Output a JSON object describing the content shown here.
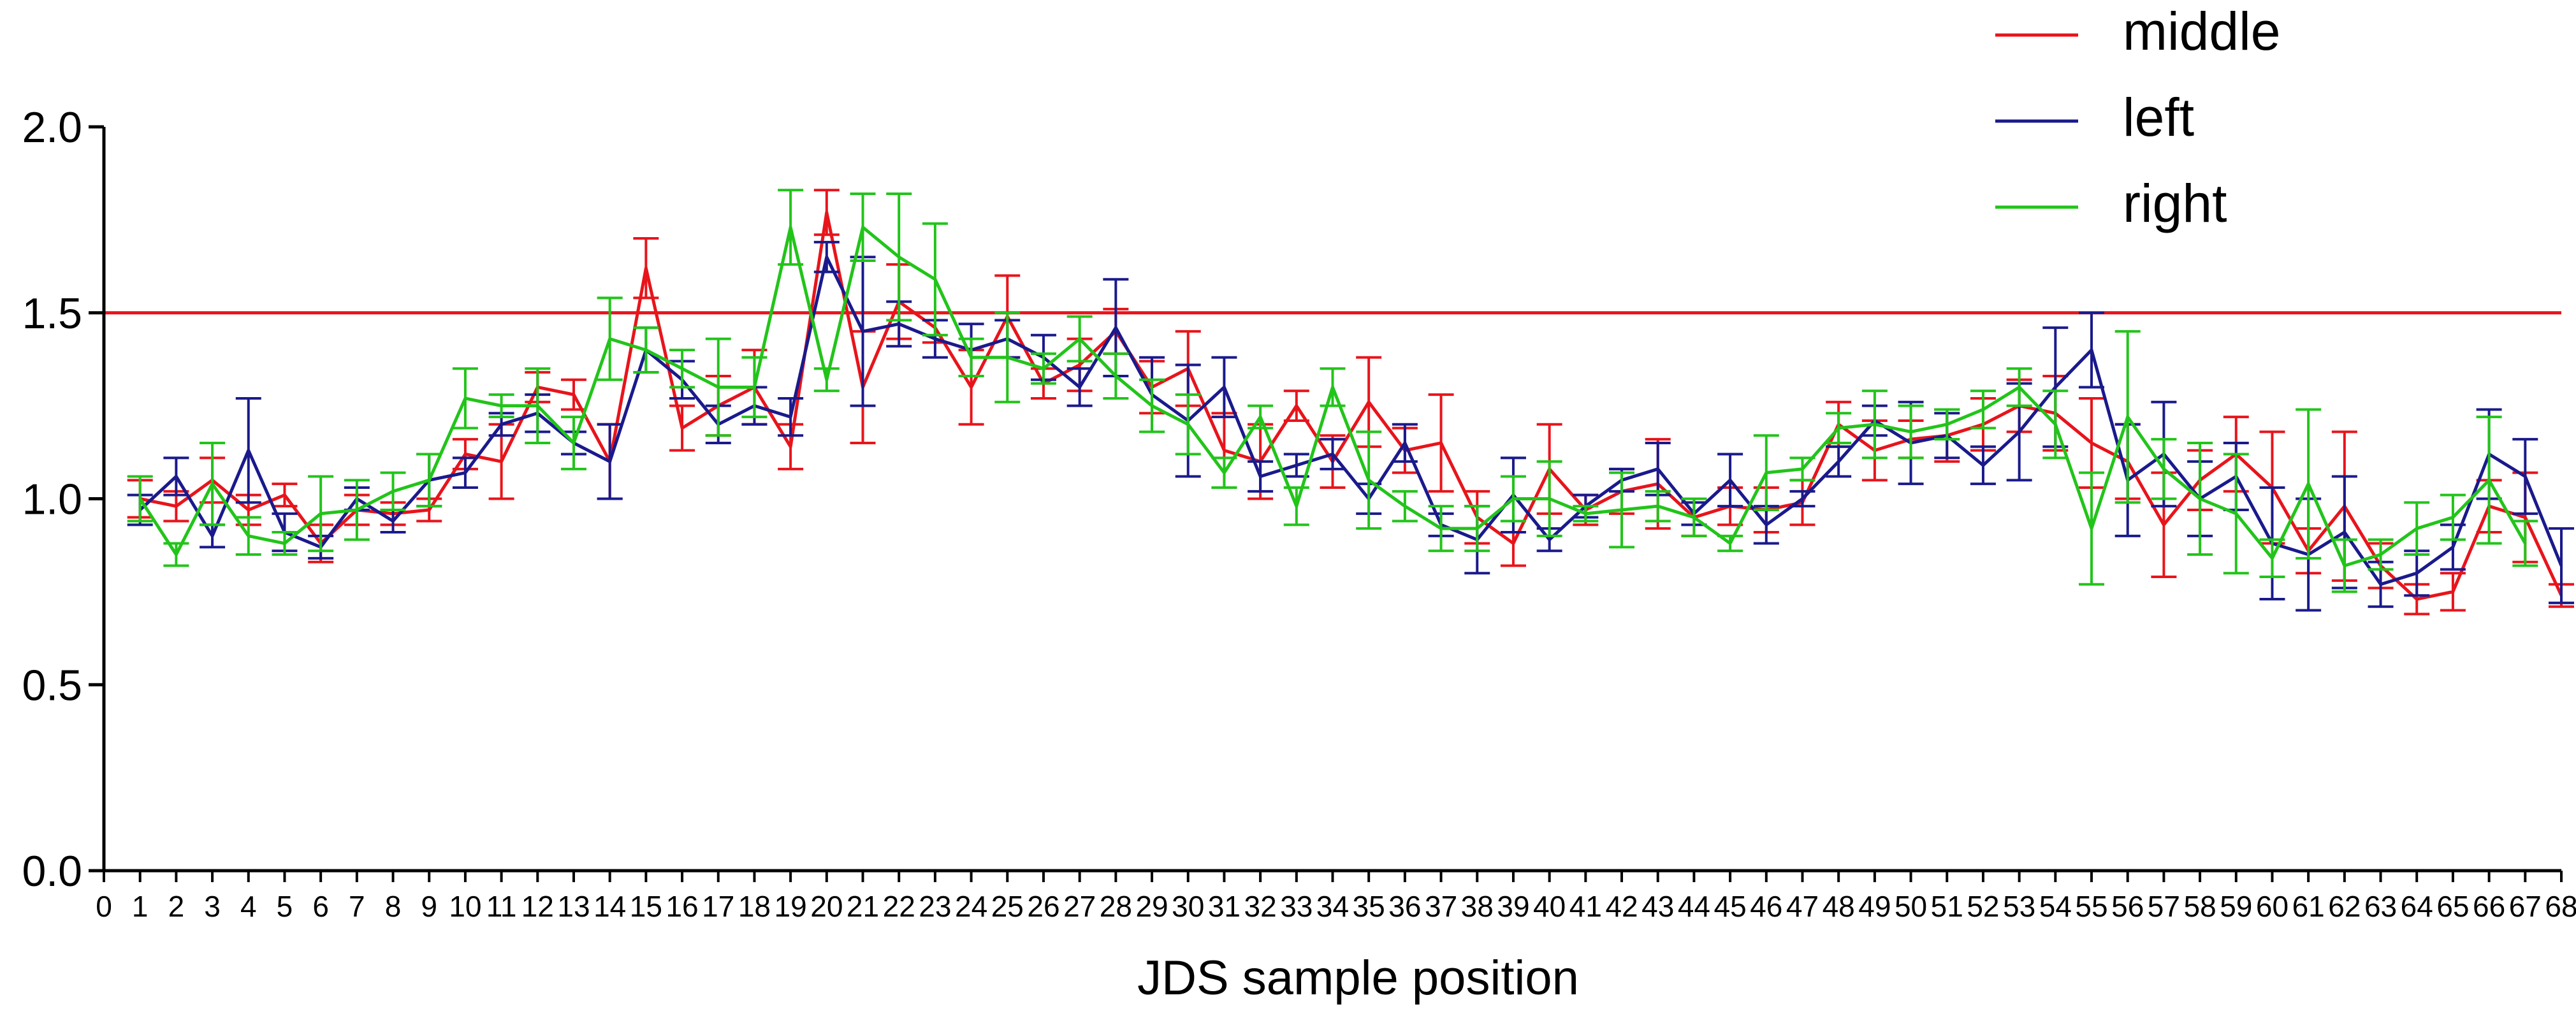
{
  "chart_data": {
    "type": "line",
    "title": "",
    "xlabel": "JDS sample position",
    "ylabel": "",
    "xlim": [
      0,
      68
    ],
    "ylim": [
      0,
      2
    ],
    "yticks": [
      0.0,
      0.5,
      1.0,
      1.5,
      2.0
    ],
    "ytick_labels": [
      "0.0",
      "0.5",
      "1.0",
      "1.5",
      "2.0"
    ],
    "reference_line": {
      "y": 1.5,
      "color": "#e8141b"
    },
    "legend_position": "top-right",
    "series": [
      {
        "name": "middle",
        "color": "#e8141b",
        "values": [
          1.0,
          0.98,
          1.05,
          0.97,
          1.01,
          0.88,
          0.97,
          0.96,
          0.97,
          1.12,
          1.1,
          1.3,
          1.28,
          1.1,
          1.62,
          1.19,
          1.25,
          1.3,
          1.14,
          1.77,
          1.3,
          1.53,
          1.46,
          1.3,
          1.49,
          1.31,
          1.36,
          1.45,
          1.3,
          1.35,
          1.13,
          1.1,
          1.25,
          1.1,
          1.26,
          1.13,
          1.15,
          0.95,
          0.88,
          1.08,
          0.97,
          1.02,
          1.04,
          0.95,
          0.98,
          0.97,
          0.99,
          1.2,
          1.13,
          1.16,
          1.17,
          1.2,
          1.25,
          1.23,
          1.15,
          1.1,
          0.93,
          1.05,
          1.12,
          1.03,
          0.86,
          0.98,
          0.82,
          0.73,
          0.75,
          0.98,
          0.95,
          0.74
        ],
        "errors": [
          0.05,
          0.04,
          0.06,
          0.04,
          0.03,
          0.05,
          0.04,
          0.03,
          0.03,
          0.04,
          0.1,
          0.04,
          0.04,
          0.1,
          0.08,
          0.06,
          0.08,
          0.1,
          0.06,
          0.06,
          0.15,
          0.1,
          0.04,
          0.1,
          0.11,
          0.04,
          0.07,
          0.06,
          0.07,
          0.1,
          0.1,
          0.1,
          0.04,
          0.07,
          0.12,
          0.06,
          0.13,
          0.07,
          0.06,
          0.12,
          0.04,
          0.06,
          0.12,
          0.05,
          0.05,
          0.06,
          0.06,
          0.06,
          0.08,
          0.05,
          0.07,
          0.07,
          0.07,
          0.1,
          0.12,
          0.1,
          0.14,
          0.08,
          0.1,
          0.15,
          0.06,
          0.2,
          0.06,
          0.04,
          0.05,
          0.07,
          0.12,
          0.03
        ]
      },
      {
        "name": "left",
        "color": "#1a1a8c",
        "values": [
          0.97,
          1.06,
          0.9,
          1.13,
          0.91,
          0.87,
          1.0,
          0.94,
          1.05,
          1.07,
          1.2,
          1.23,
          1.15,
          1.1,
          1.4,
          1.32,
          1.2,
          1.25,
          1.22,
          1.65,
          1.45,
          1.47,
          1.43,
          1.4,
          1.43,
          1.38,
          1.3,
          1.46,
          1.28,
          1.21,
          1.3,
          1.06,
          1.09,
          1.12,
          1.0,
          1.15,
          0.93,
          0.89,
          1.01,
          0.89,
          0.98,
          1.05,
          1.08,
          0.96,
          1.05,
          0.93,
          1.0,
          1.1,
          1.21,
          1.15,
          1.17,
          1.09,
          1.18,
          1.3,
          1.4,
          1.05,
          1.12,
          1.0,
          1.06,
          0.88,
          0.85,
          0.91,
          0.77,
          0.8,
          0.87,
          1.12,
          1.06,
          0.82
        ],
        "errors": [
          0.04,
          0.05,
          0.03,
          0.14,
          0.05,
          0.03,
          0.03,
          0.03,
          0.07,
          0.04,
          0.03,
          0.05,
          0.03,
          0.1,
          0.06,
          0.05,
          0.05,
          0.05,
          0.05,
          0.04,
          0.2,
          0.06,
          0.05,
          0.07,
          0.05,
          0.06,
          0.05,
          0.13,
          0.1,
          0.15,
          0.08,
          0.04,
          0.03,
          0.04,
          0.04,
          0.05,
          0.03,
          0.09,
          0.1,
          0.03,
          0.03,
          0.03,
          0.07,
          0.03,
          0.07,
          0.05,
          0.02,
          0.04,
          0.04,
          0.11,
          0.06,
          0.05,
          0.13,
          0.16,
          0.1,
          0.15,
          0.14,
          0.1,
          0.09,
          0.15,
          0.15,
          0.15,
          0.06,
          0.06,
          0.06,
          0.12,
          0.1,
          0.1
        ]
      },
      {
        "name": "right",
        "color": "#22c41a",
        "values": [
          1.0,
          0.85,
          1.04,
          0.9,
          0.88,
          0.96,
          0.97,
          1.02,
          1.05,
          1.27,
          1.25,
          1.25,
          1.15,
          1.43,
          1.4,
          1.35,
          1.3,
          1.3,
          1.73,
          1.32,
          1.73,
          1.65,
          1.59,
          1.38,
          1.38,
          1.35,
          1.43,
          1.33,
          1.25,
          1.2,
          1.07,
          1.22,
          0.98,
          1.3,
          1.05,
          0.98,
          0.92,
          0.92,
          1.0,
          1.0,
          0.96,
          0.97,
          0.98,
          0.95,
          0.88,
          1.07,
          1.08,
          1.19,
          1.2,
          1.18,
          1.2,
          1.24,
          1.3,
          1.2,
          0.92,
          1.22,
          1.08,
          1.0,
          0.96,
          0.84,
          1.04,
          0.82,
          0.85,
          0.92,
          0.95,
          1.05,
          0.88
        ],
        "errors": [
          0.06,
          0.03,
          0.11,
          0.05,
          0.03,
          0.1,
          0.08,
          0.05,
          0.07,
          0.08,
          0.03,
          0.1,
          0.07,
          0.11,
          0.06,
          0.05,
          0.13,
          0.08,
          0.1,
          0.03,
          0.09,
          0.17,
          0.15,
          0.05,
          0.12,
          0.04,
          0.06,
          0.06,
          0.07,
          0.08,
          0.04,
          0.03,
          0.05,
          0.05,
          0.13,
          0.04,
          0.06,
          0.06,
          0.06,
          0.1,
          0.02,
          0.1,
          0.04,
          0.05,
          0.02,
          0.1,
          0.03,
          0.04,
          0.09,
          0.07,
          0.04,
          0.05,
          0.05,
          0.09,
          0.15,
          0.23,
          0.08,
          0.15,
          0.16,
          0.05,
          0.2,
          0.07,
          0.04,
          0.07,
          0.06,
          0.17,
          0.06
        ]
      }
    ]
  }
}
